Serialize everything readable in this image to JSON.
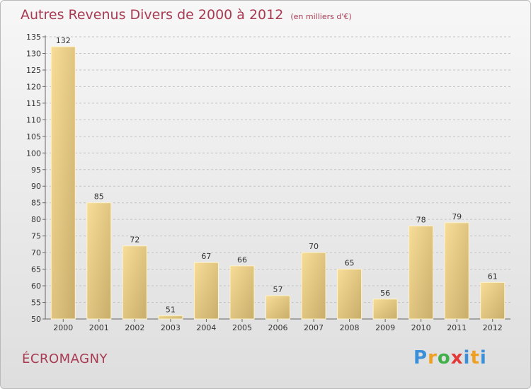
{
  "title": "Autres Revenus Divers de 2000 à 2012",
  "subtitle": "(en milliers d'€)",
  "commune": "ÉCROMAGNY",
  "logo": {
    "text": "Proxiti",
    "letters": [
      "P",
      "r",
      "o",
      "x",
      "i",
      "t",
      "i"
    ]
  },
  "colors": {
    "accent": "#a83a52",
    "bar_light": "#f7dd97",
    "bar_dark": "#c9ad6b"
  },
  "chart_data": {
    "type": "bar",
    "categories": [
      "2000",
      "2001",
      "2002",
      "2003",
      "2004",
      "2005",
      "2006",
      "2007",
      "2008",
      "2009",
      "2010",
      "2011",
      "2012"
    ],
    "values": [
      132,
      85,
      72,
      51,
      67,
      66,
      57,
      70,
      65,
      56,
      78,
      79,
      61
    ],
    "title": "Autres Revenus Divers de 2000 à 2012",
    "subtitle": "(en milliers d'€)",
    "ylim": [
      50,
      135
    ],
    "yticks": [
      50,
      55,
      60,
      65,
      70,
      75,
      80,
      85,
      90,
      95,
      100,
      105,
      110,
      115,
      120,
      125,
      130,
      135
    ],
    "grid": true
  }
}
